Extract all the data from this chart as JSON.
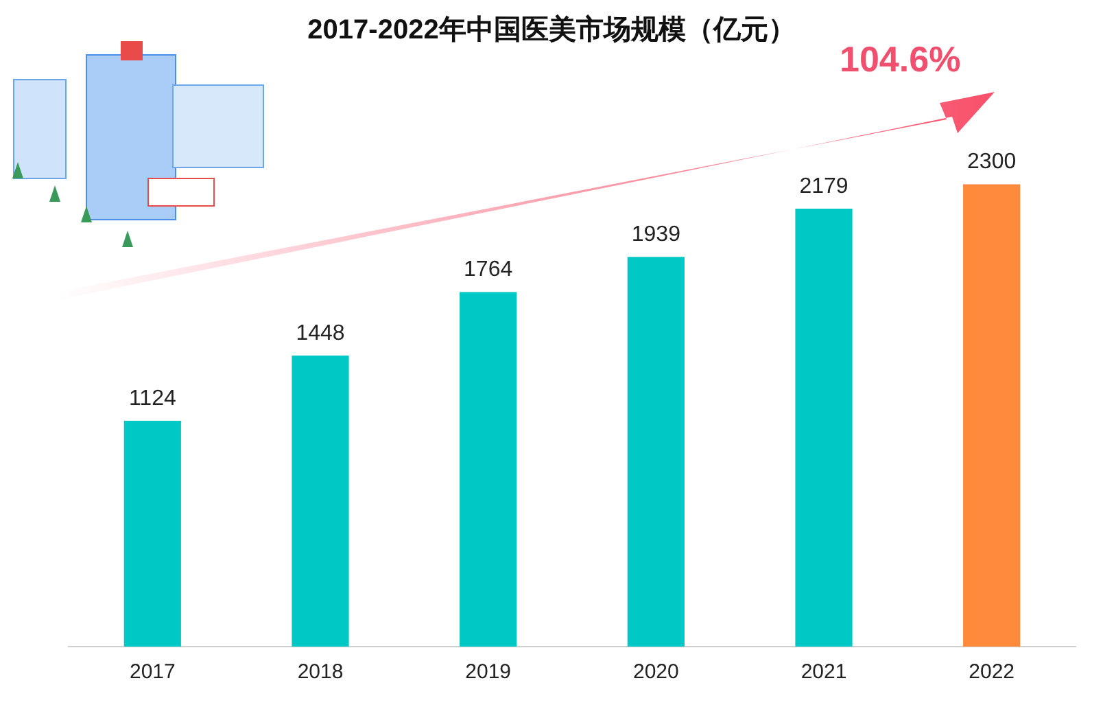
{
  "chart_data": {
    "type": "bar",
    "title": "2017-2022年中国医美市场规模（亿元）",
    "categories": [
      "2017",
      "2018",
      "2019",
      "2020",
      "2021",
      "2022"
    ],
    "values": [
      1124,
      1448,
      1764,
      1939,
      2179,
      2300
    ],
    "colors": [
      "#00c8c4",
      "#00c8c4",
      "#00c8c4",
      "#00c8c4",
      "#00c8c4",
      "#ff8a3c"
    ],
    "data_labels": true,
    "grid": false,
    "legend": false,
    "annotations": [
      "104.6%"
    ]
  }
}
